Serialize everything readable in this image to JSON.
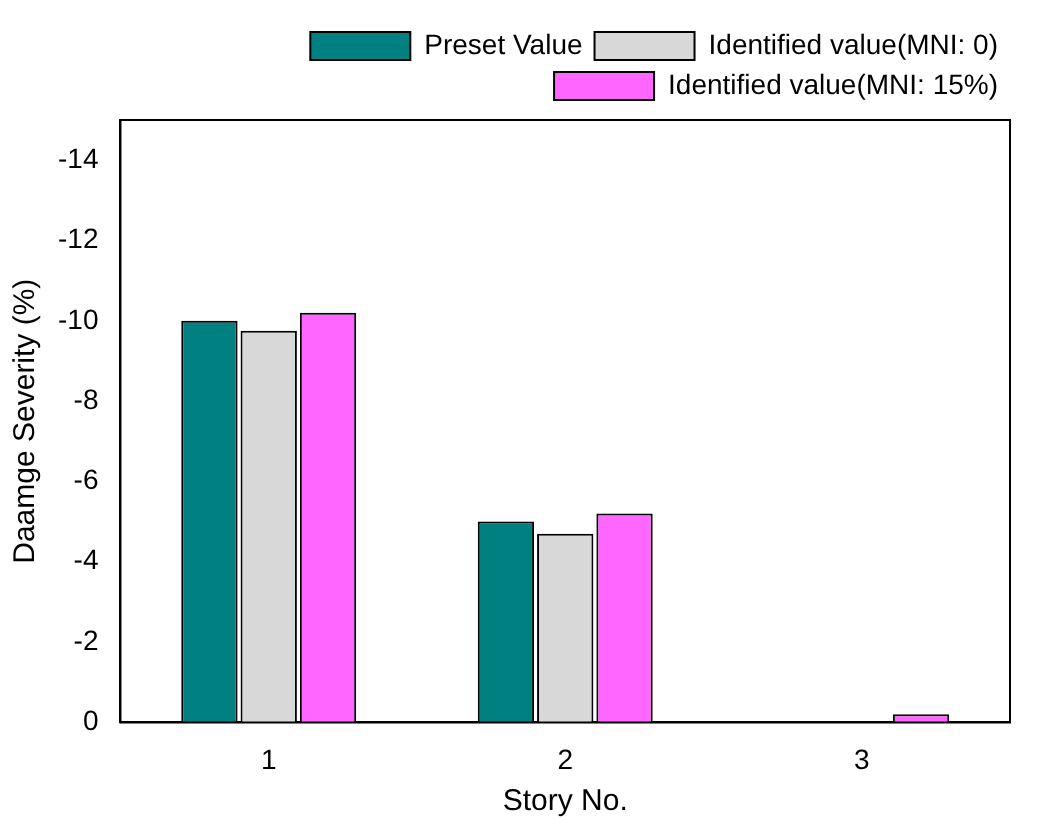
{
  "chart_data": {
    "type": "bar",
    "xlabel": "Story No.",
    "ylabel": "Daamge Severity (%)",
    "categories": [
      "1",
      "2",
      "3"
    ],
    "series": [
      {
        "name": "Preset Value",
        "color": "#008080",
        "values": [
          -10,
          -5,
          0
        ]
      },
      {
        "name": "Identified value(MNI: 0)",
        "color": "#d8d8d8",
        "values": [
          -9.75,
          -4.7,
          0
        ]
      },
      {
        "name": "Identified value(MNI: 15%)",
        "color": "#ff66ff",
        "values": [
          -10.2,
          -5.2,
          -0.2
        ]
      }
    ],
    "ylim": [
      0,
      -15
    ],
    "yticks": [
      0,
      -2,
      -4,
      -6,
      -8,
      -10,
      -12,
      -14
    ],
    "grid": false,
    "legend": "top right"
  }
}
